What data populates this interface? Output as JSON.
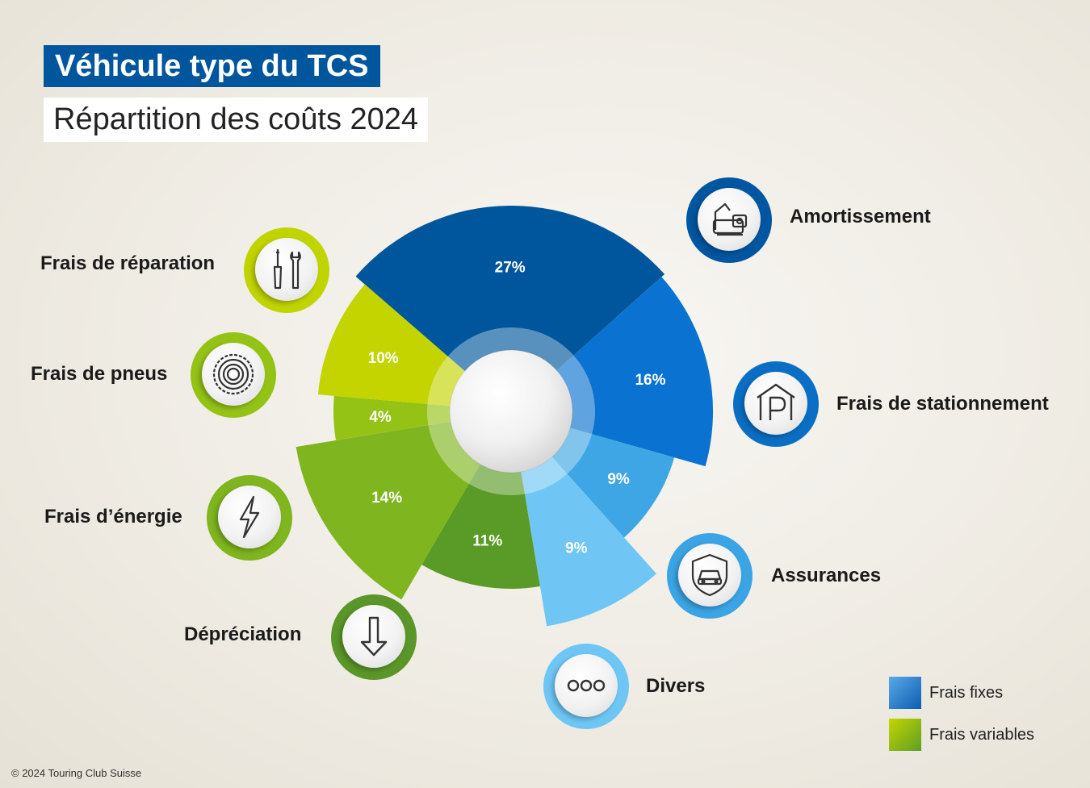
{
  "title": "Véhicule type du TCS",
  "subtitle": "Répartition des coûts 2024",
  "copyright": "© 2024 Touring Club Suisse",
  "legend": [
    {
      "label": "Frais fixes",
      "color": "#1f72c0"
    },
    {
      "label": "Frais variables",
      "color": "#8cc020"
    }
  ],
  "chart_data": {
    "type": "pie",
    "unit": "%",
    "slices": [
      {
        "label": "Amortissement",
        "value": 27,
        "value_label": "27%",
        "group": "Frais fixes",
        "color": "#00569c",
        "icon": "car-documents-icon"
      },
      {
        "label": "Frais de stationnement",
        "value": 16,
        "value_label": "16%",
        "group": "Frais fixes",
        "color": "#0a72d0",
        "icon": "parking-icon"
      },
      {
        "label": "Assurances",
        "value": 9,
        "value_label": "9%",
        "group": "Frais fixes",
        "color": "#3ea6e4",
        "icon": "car-shield-icon"
      },
      {
        "label": "Divers",
        "value": 9,
        "value_label": "9%",
        "group": "Frais fixes",
        "color": "#6fc6f4",
        "icon": "more-dots-icon"
      },
      {
        "label": "Dépréciation",
        "value": 11,
        "value_label": "11%",
        "group": "Frais variables",
        "color": "#5a9a26",
        "icon": "arrow-down-icon"
      },
      {
        "label": "Frais d’énergie",
        "value": 14,
        "value_label": "14%",
        "group": "Frais variables",
        "color": "#7fb51e",
        "icon": "lightning-icon"
      },
      {
        "label": "Frais de pneus",
        "value": 4,
        "value_label": "4%",
        "group": "Frais variables",
        "color": "#94c316",
        "icon": "tire-icon"
      },
      {
        "label": "Frais de réparation",
        "value": 10,
        "value_label": "10%",
        "group": "Frais variables",
        "color": "#c3d400",
        "icon": "tools-icon"
      }
    ]
  }
}
